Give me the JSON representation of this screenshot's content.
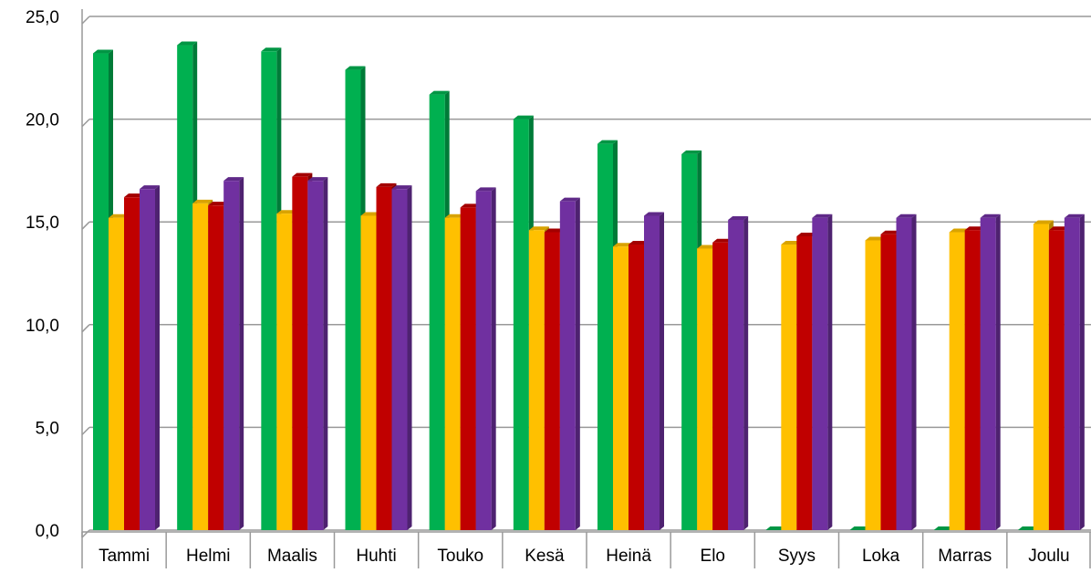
{
  "chart_data": {
    "type": "bar3d",
    "categories": [
      "Tammi",
      "Helmi",
      "Maalis",
      "Huhti",
      "Touko",
      "Kesä",
      "Heinä",
      "Elo",
      "Syys",
      "Loka",
      "Marras",
      "Joulu"
    ],
    "series": [
      {
        "color": "#00b050",
        "values": [
          23.2,
          23.6,
          23.3,
          22.4,
          21.2,
          20.0,
          18.8,
          18.3,
          0,
          0,
          0,
          0
        ]
      },
      {
        "color": "#ffc000",
        "values": [
          15.2,
          15.9,
          15.4,
          15.3,
          15.2,
          14.6,
          13.8,
          13.7,
          13.9,
          14.1,
          14.5,
          14.9
        ]
      },
      {
        "color": "#c00000",
        "values": [
          16.2,
          15.8,
          17.2,
          16.7,
          15.7,
          14.5,
          13.9,
          14.0,
          14.3,
          14.4,
          14.6,
          14.6
        ]
      },
      {
        "color": "#7030a0",
        "values": [
          16.6,
          17.0,
          17.0,
          16.6,
          16.5,
          16.0,
          15.3,
          15.1,
          15.2,
          15.2,
          15.2,
          15.2
        ]
      }
    ],
    "ylim": [
      0,
      25
    ],
    "yticks": [
      {
        "value": 0,
        "label": "0,0"
      },
      {
        "value": 5,
        "label": "5,0"
      },
      {
        "value": 10,
        "label": "10,0"
      },
      {
        "value": 15,
        "label": "15,0"
      },
      {
        "value": 20,
        "label": "20,0"
      },
      {
        "value": 25,
        "label": "25,0"
      }
    ],
    "grid": true
  }
}
